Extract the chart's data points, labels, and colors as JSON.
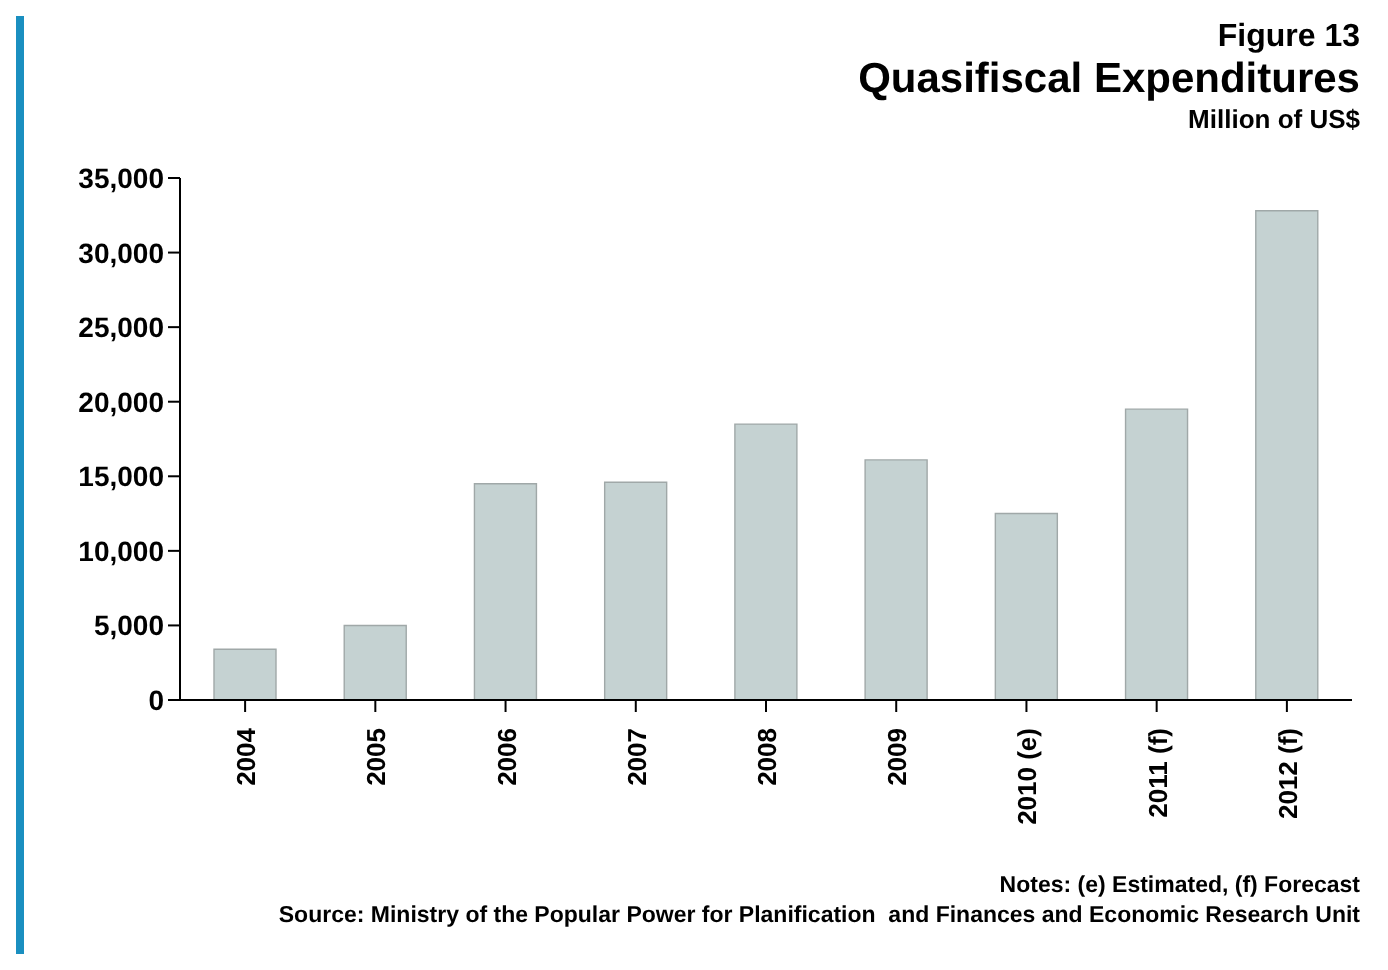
{
  "chart_data": {
    "type": "bar",
    "title": "Figure 13",
    "subtitle": "Quasifiscal Expenditures",
    "ylabel": "Million of US$",
    "categories": [
      "2004",
      "2005",
      "2006",
      "2007",
      "2008",
      "2009",
      "2010 (e)",
      "2011 (f)",
      "2012 (f)"
    ],
    "values": [
      3400,
      5000,
      14500,
      14600,
      18500,
      16100,
      12500,
      19500,
      32800
    ],
    "color": "#c5d2d2",
    "ylim": [
      0,
      35000
    ],
    "yticks": [
      0,
      {
        "value": 5000,
        "label": "5,000"
      },
      {
        "value": 10000,
        "label": "10,000"
      },
      {
        "value": 15000,
        "label": "15,000"
      },
      {
        "value": 20000,
        "label": "20,000"
      },
      {
        "value": 25000,
        "label": "25,000"
      },
      {
        "value": 30000,
        "label": "30,000"
      },
      {
        "value": 35000,
        "label": "35,000"
      }
    ],
    "grid": false,
    "legend": false,
    "annotations": [
      "Notes: (e) Estimated, (f) Forecast",
      "Source: Ministry of the Popular Power for Planification  and Finances and Economic Research Unit"
    ]
  }
}
